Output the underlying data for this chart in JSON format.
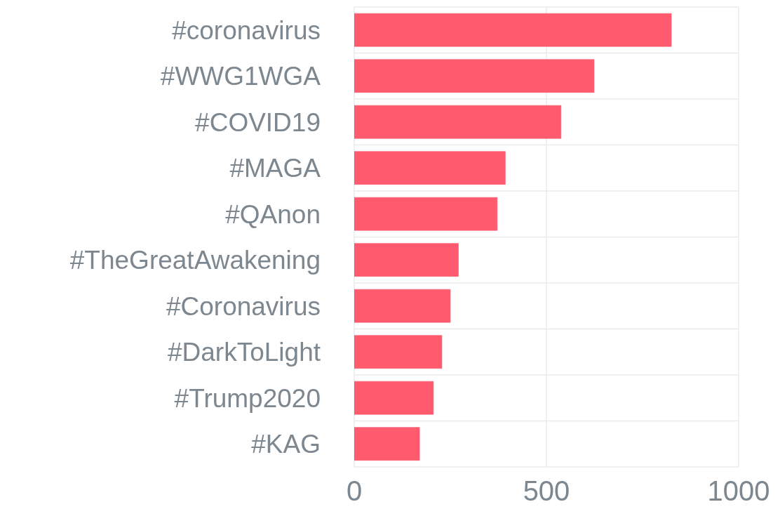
{
  "chart_data": {
    "type": "bar",
    "orientation": "horizontal",
    "categories": [
      "#coronavirus",
      "#WWG1WGA",
      "#COVID19",
      "#MAGA",
      "#QAnon",
      "#TheGreatAwakening",
      "#Coronavirus",
      "#DarkToLight",
      "#Trump2020",
      "#KAG"
    ],
    "values": [
      825,
      624,
      538,
      393,
      372,
      271,
      250,
      228,
      206,
      170
    ],
    "color": "#ff5a6e",
    "xlim": [
      0,
      1000
    ],
    "xticks": [
      0,
      500,
      1000
    ],
    "grid": true
  }
}
